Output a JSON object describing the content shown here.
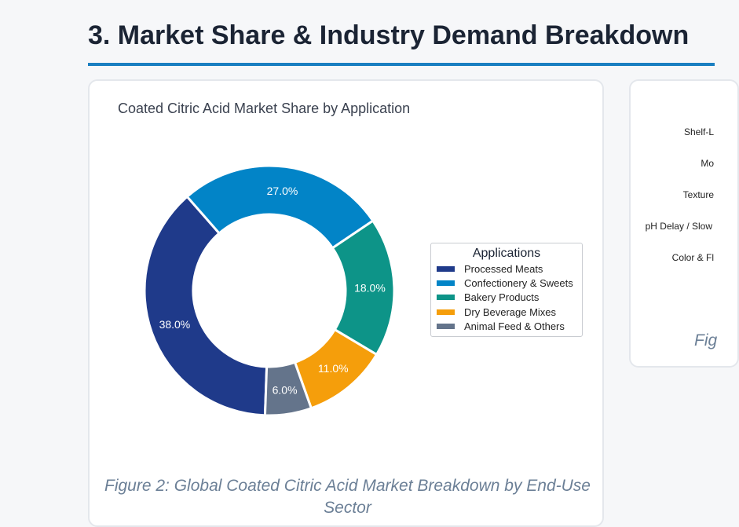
{
  "section": {
    "title": "3. Market Share & Industry Demand Breakdown"
  },
  "left_card": {
    "caption": "Figure 2: Global Coated Citric Acid Market Breakdown by End-Use Sector"
  },
  "chart_data": {
    "type": "pie",
    "donut": true,
    "title": "Coated Citric Acid Market Share by Application",
    "legend_title": "Applications",
    "legend_position": "right",
    "slices": [
      {
        "name": "Processed Meats",
        "value": 38.0,
        "label": "38.0%",
        "color": "#1f3a8a"
      },
      {
        "name": "Confectionery & Sweets",
        "value": 27.0,
        "label": "27.0%",
        "color": "#0284c7"
      },
      {
        "name": "Bakery Products",
        "value": 18.0,
        "label": "18.0%",
        "color": "#0d9488"
      },
      {
        "name": "Dry Beverage Mixes",
        "value": 11.0,
        "label": "11.0%",
        "color": "#f59e0b"
      },
      {
        "name": "Animal Feed & Others",
        "value": 6.0,
        "label": "6.0%",
        "color": "#64748b"
      }
    ]
  },
  "right_card": {
    "labels": [
      "Shelf-L",
      "Mo",
      "Texture",
      "pH Delay / Slow",
      "Color & Fl"
    ],
    "caption": "Fig"
  }
}
